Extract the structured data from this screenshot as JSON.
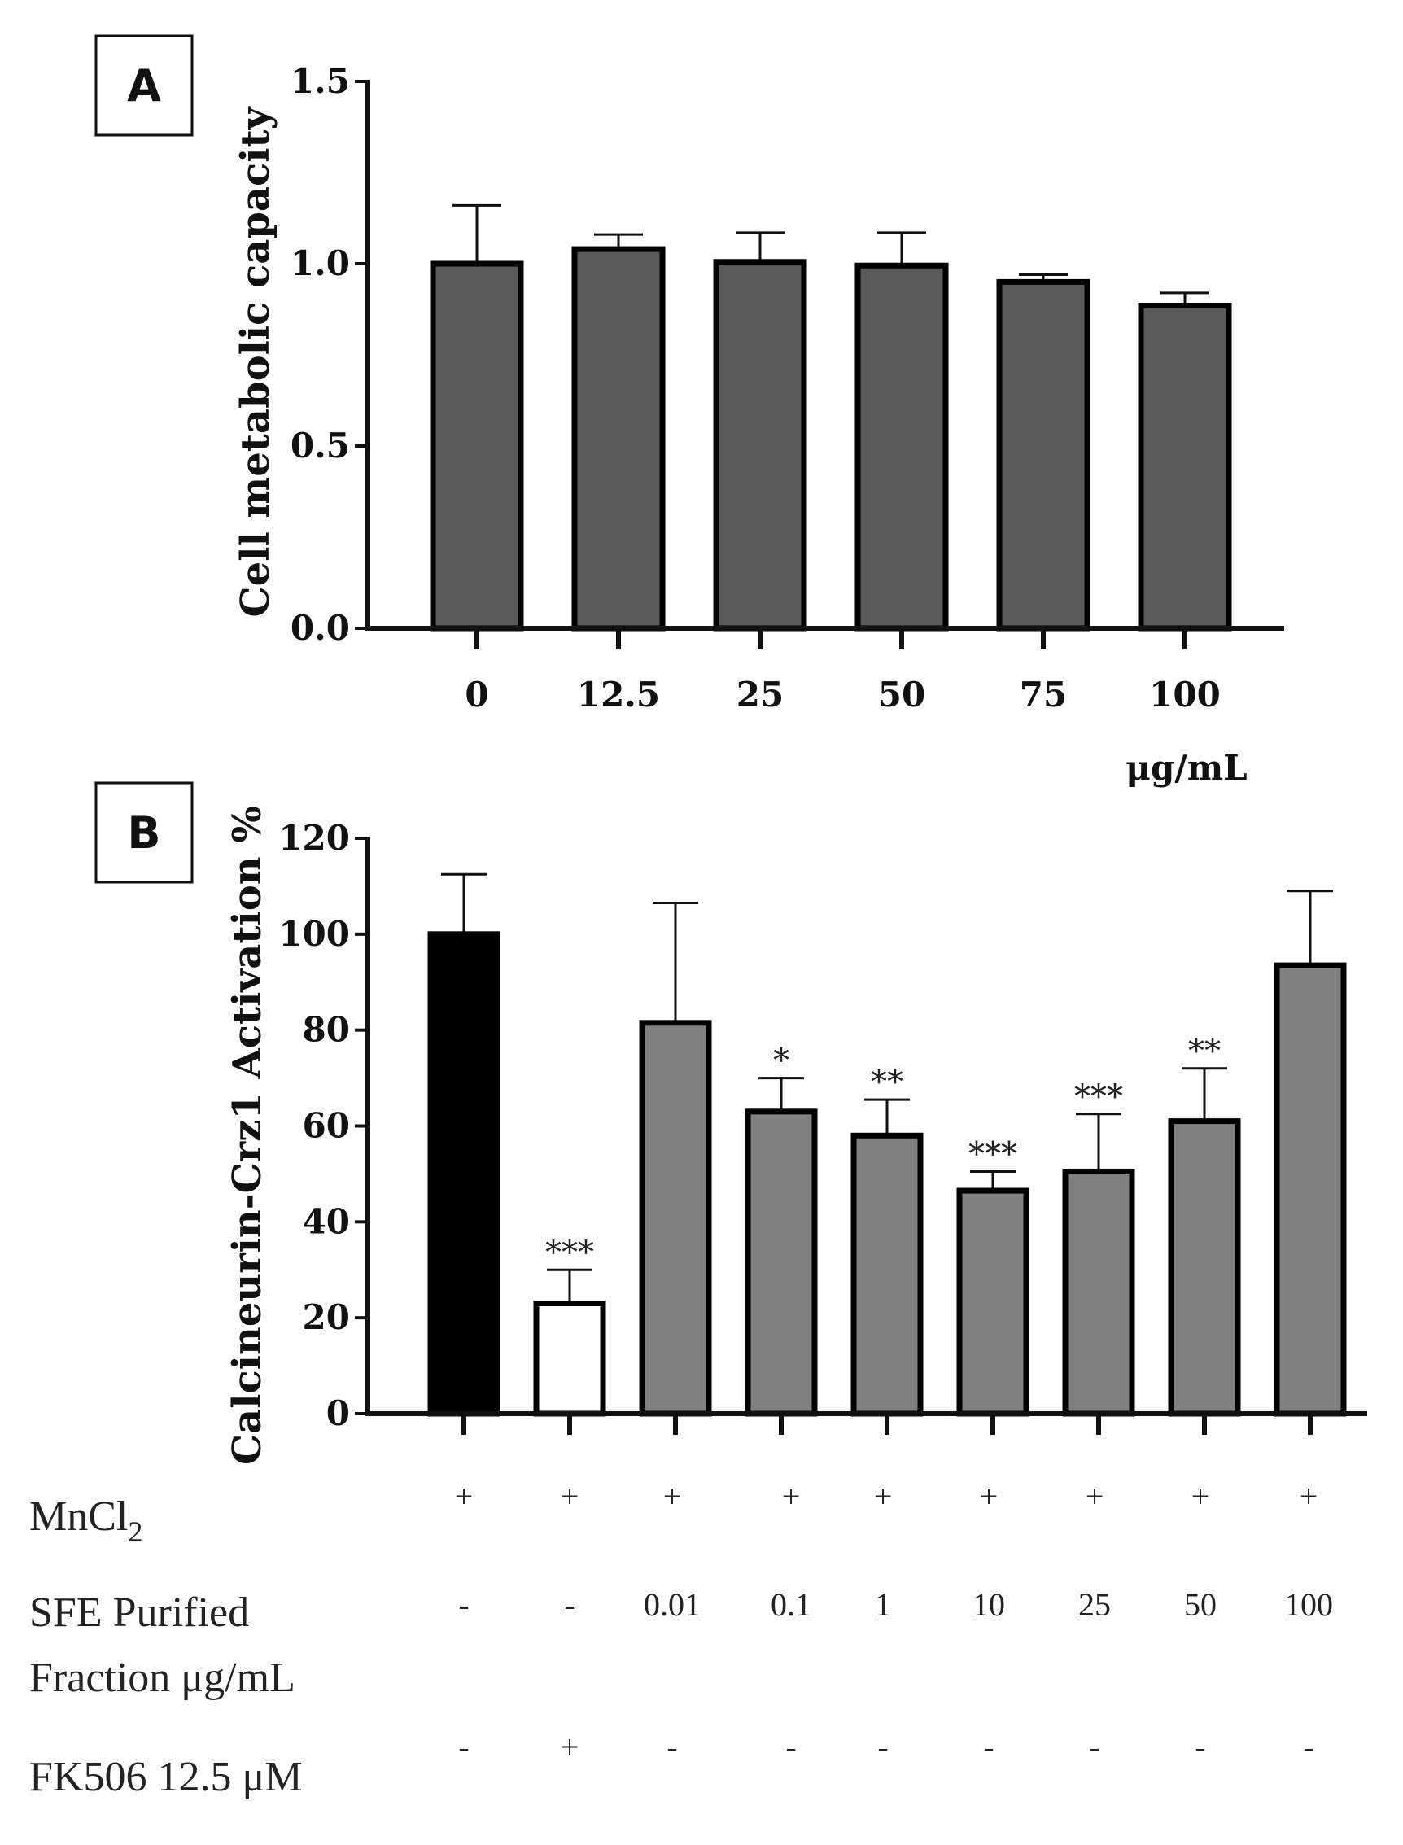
{
  "chart_data": [
    {
      "type": "bar",
      "panel": "A",
      "title": "",
      "xlabel": "",
      "unit_label": "μg/mL",
      "ylabel": "Cell metabolic capacity",
      "ylim": [
        0,
        1.5
      ],
      "yticks": [
        "0.0",
        "0.5",
        "1.0",
        "1.5"
      ],
      "categories": [
        "0",
        "12.5",
        "25",
        "50",
        "75",
        "100"
      ],
      "values": [
        1.0,
        1.04,
        1.005,
        0.995,
        0.95,
        0.885
      ],
      "errors": [
        0.16,
        0.04,
        0.08,
        0.09,
        0.02,
        0.035
      ],
      "bar_color": "#595959"
    },
    {
      "type": "bar",
      "panel": "B",
      "title": "",
      "xlabel": "",
      "ylabel": "Calcineurin-Crz1 Activation %",
      "ylim": [
        0,
        120
      ],
      "yticks": [
        "0",
        "20",
        "40",
        "60",
        "80",
        "100",
        "120"
      ],
      "categories": [
        "MnCl2",
        "MnCl2 + FK506",
        "0.01",
        "0.1",
        "1",
        "10",
        "25",
        "50",
        "100"
      ],
      "values": [
        100,
        23,
        81.5,
        63,
        58,
        46.5,
        50.5,
        61,
        93.5
      ],
      "errors": [
        12.5,
        7,
        25,
        7,
        7.5,
        4,
        12,
        11,
        15.5
      ],
      "significance": [
        "",
        "***",
        "",
        "*",
        "**",
        "***",
        "***",
        "**",
        ""
      ],
      "bar_colors": [
        "#000000",
        "#ffffff",
        "#808080",
        "#808080",
        "#808080",
        "#808080",
        "#808080",
        "#808080",
        "#808080"
      ]
    }
  ],
  "treatment_table": {
    "rows": [
      {
        "label": "MnCl",
        "subscript": "2",
        "values": [
          "+",
          "+",
          "+",
          "+",
          "+",
          "+",
          "+",
          "+",
          "+"
        ]
      },
      {
        "label": "SFE Purified",
        "label2": "Fraction μg/mL",
        "values": [
          "-",
          "-",
          "0.01",
          "0.1",
          "1",
          "10",
          "25",
          "50",
          "100"
        ]
      },
      {
        "label": "FK506 12.5 μM",
        "values": [
          "-",
          "+",
          "-",
          "-",
          "-",
          "-",
          "-",
          "-",
          "-"
        ]
      }
    ]
  }
}
